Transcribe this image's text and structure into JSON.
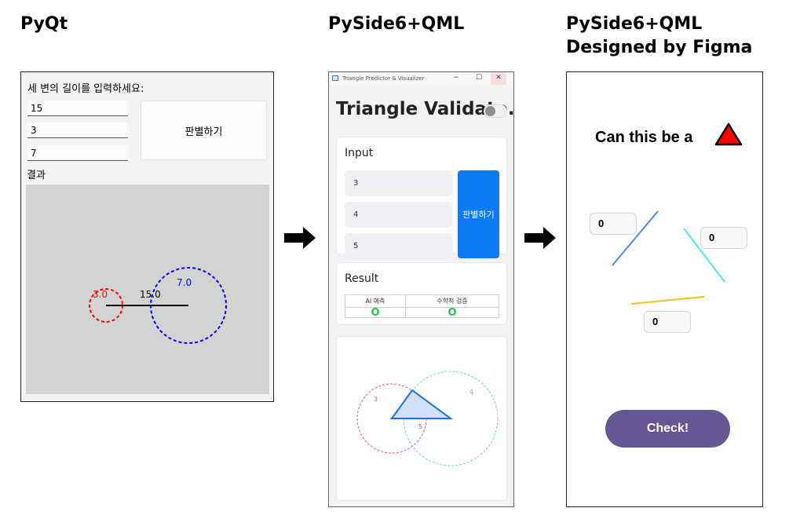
{
  "headings": {
    "pyqt": "PyQt",
    "qml": "PySide6+QML",
    "figma_line1": "PySide6+QML",
    "figma_line2": "Designed by Figma"
  },
  "pyqt": {
    "prompt": "세 변의 길이를 입력하세요:",
    "inputs": [
      "15",
      "3",
      "7"
    ],
    "judge_button": "판별하기",
    "result_label": "결과",
    "canvas": {
      "segment_label": "15.0",
      "left_circle_label": "3.0",
      "right_circle_label": "7.0",
      "left_color": "#ff0000",
      "right_color": "#0000ff"
    }
  },
  "qml": {
    "window_title": "Triangle Predictor & Visualizer",
    "window_buttons": {
      "minimize": "−",
      "maximize": "☐",
      "close": "✕"
    },
    "app_title": "Triangle Validato.",
    "input_card_title": "Input",
    "inputs": [
      "3",
      "4",
      "5"
    ],
    "judge_button": "판별하기",
    "result_card_title": "Result",
    "table_headers": [
      "AI 예측",
      "수학적 검증"
    ],
    "table_values": [
      "O",
      "O"
    ],
    "viz": {
      "a_label": "3",
      "b_label": "4",
      "c_label": "5"
    },
    "accent_color": "#0d7bf4"
  },
  "figma": {
    "question": "Can this be a",
    "fields": [
      "0",
      "0",
      "0"
    ],
    "check_button": "Check!",
    "button_color": "#655791",
    "icon": "red-triangle-icon"
  }
}
